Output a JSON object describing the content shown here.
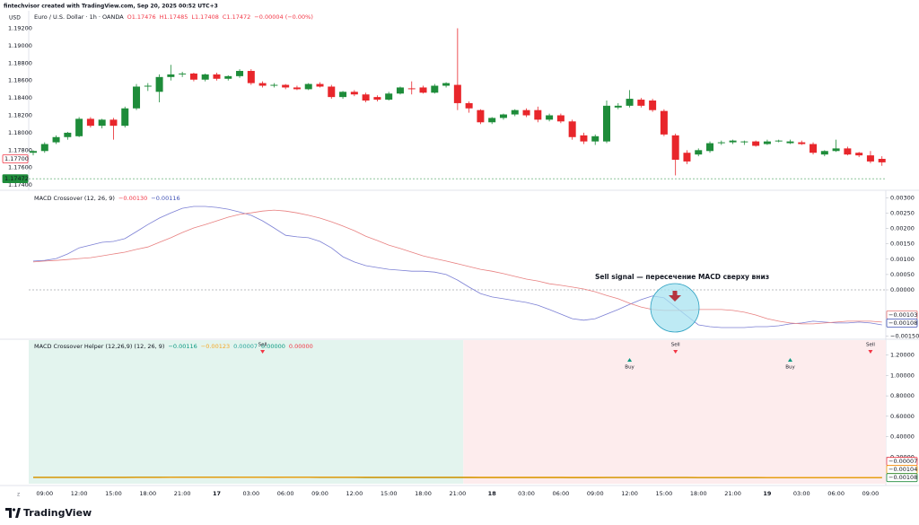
{
  "watermark": "fintechvisor created with TradingView.com, Sep 20, 2025 00:52 UTC+3",
  "currency": "USD",
  "footer_brand": "TradingView",
  "chart_data": [
    {
      "type": "candlestick",
      "legend": {
        "symbol": "Euro / U.S. Dollar · 1h · OANDA",
        "color": "#f23645",
        "ohlc": [
          "O1.17476",
          "H1.17485",
          "L1.17408",
          "C1.17472",
          "−0.00004 (−0.00%)"
        ]
      },
      "categories": [
        null,
        "09:00",
        null,
        null,
        "12:00",
        null,
        null,
        "15:00",
        null,
        null,
        "18:00",
        null,
        null,
        "21:00",
        null,
        null,
        "17",
        null,
        null,
        "03:00",
        null,
        null,
        "06:00",
        null,
        null,
        "09:00",
        null,
        null,
        "12:00",
        null,
        null,
        "15:00",
        null,
        null,
        "18:00",
        null,
        null,
        "21:00",
        null,
        null,
        "18",
        null,
        null,
        "03:00",
        null,
        null,
        "06:00",
        null,
        null,
        "09:00",
        null,
        null,
        "12:00",
        null,
        null,
        "15:00",
        null,
        null,
        "18:00",
        null,
        null,
        "21:00",
        null,
        null,
        "19",
        null,
        null,
        "03:00",
        null,
        null,
        "06:00",
        null,
        null,
        "09:00",
        null
      ],
      "open": [
        1.1777,
        1.1779,
        1.1789,
        1.1795,
        1.1796,
        1.1816,
        1.1808,
        1.1815,
        1.1808,
        1.1828,
        1.1853,
        1.1847,
        1.1864,
        1.1867,
        1.1868,
        1.1861,
        1.1867,
        1.1862,
        1.1865,
        1.1871,
        1.1857,
        1.1854,
        1.1855,
        1.1852,
        1.185,
        1.1856,
        1.1853,
        1.1841,
        1.1847,
        1.1844,
        1.1841,
        1.1838,
        1.1845,
        1.1851,
        1.1852,
        1.1846,
        1.1854,
        1.1855,
        1.1834,
        1.1826,
        1.1812,
        1.1817,
        1.1821,
        1.1826,
        1.1826,
        1.1815,
        1.182,
        1.1813,
        1.1797,
        1.179,
        1.179,
        1.1829,
        1.1831,
        1.1838,
        1.1837,
        1.1825,
        1.1797,
        1.1777,
        1.1775,
        1.1779,
        1.1788,
        1.1789,
        1.1789,
        1.179,
        1.1787,
        1.179,
        1.1788,
        1.1789,
        1.1787,
        1.1775,
        1.1779,
        1.1782,
        1.1777,
        1.1774,
        1.177
      ],
      "high": [
        1.178,
        1.1789,
        1.1797,
        1.1801,
        1.1818,
        1.1818,
        1.1816,
        1.1817,
        1.183,
        1.1856,
        1.1857,
        1.1867,
        1.1878,
        1.187,
        1.1869,
        1.1868,
        1.1869,
        1.1866,
        1.1873,
        1.1873,
        1.1859,
        1.1857,
        1.1856,
        1.1854,
        1.1857,
        1.1858,
        1.1855,
        1.1848,
        1.1849,
        1.1846,
        1.1843,
        1.1847,
        1.1853,
        1.1859,
        1.1854,
        1.1856,
        1.1858,
        1.192,
        1.1836,
        1.1827,
        1.1818,
        1.1822,
        1.1827,
        1.1828,
        1.183,
        1.1822,
        1.1822,
        1.1815,
        1.18,
        1.1798,
        1.1837,
        1.1834,
        1.1849,
        1.184,
        1.1839,
        1.1827,
        1.1799,
        1.178,
        1.1782,
        1.179,
        1.1791,
        1.1792,
        1.1791,
        1.1791,
        1.1792,
        1.1792,
        1.1792,
        1.1791,
        1.1789,
        1.178,
        1.1792,
        1.1784,
        1.1778,
        1.1779,
        1.1773
      ],
      "low": [
        1.1774,
        1.1777,
        1.1787,
        1.1792,
        1.1795,
        1.1806,
        1.1805,
        1.1792,
        1.1806,
        1.1826,
        1.1848,
        1.1835,
        1.186,
        1.1864,
        1.1859,
        1.1859,
        1.186,
        1.186,
        1.1863,
        1.1855,
        1.1852,
        1.1852,
        1.185,
        1.1849,
        1.1849,
        1.1852,
        1.1839,
        1.1839,
        1.1842,
        1.1835,
        1.1836,
        1.1837,
        1.1844,
        1.1844,
        1.1845,
        1.1845,
        1.1852,
        1.1826,
        1.1823,
        1.181,
        1.181,
        1.1815,
        1.1819,
        1.1818,
        1.1812,
        1.1813,
        1.1811,
        1.1792,
        1.1787,
        1.1786,
        1.1788,
        1.1827,
        1.1829,
        1.1829,
        1.1824,
        1.1796,
        1.1751,
        1.1764,
        1.1773,
        1.1777,
        1.1786,
        1.1787,
        1.1786,
        1.1784,
        1.1786,
        1.1789,
        1.1787,
        1.1786,
        1.1775,
        1.1773,
        1.1778,
        1.1774,
        1.1772,
        1.1765,
        1.1762
      ],
      "close": [
        1.1779,
        1.1787,
        1.1795,
        1.18,
        1.1816,
        1.1808,
        1.1815,
        1.1808,
        1.1828,
        1.1853,
        1.1854,
        1.1864,
        1.1867,
        1.1868,
        1.1861,
        1.1867,
        1.1862,
        1.1865,
        1.1871,
        1.1857,
        1.1854,
        1.1855,
        1.1852,
        1.185,
        1.1856,
        1.1853,
        1.1841,
        1.1847,
        1.1844,
        1.1837,
        1.1838,
        1.1845,
        1.1852,
        1.185,
        1.1846,
        1.1854,
        1.1857,
        1.1834,
        1.1828,
        1.1812,
        1.1817,
        1.1821,
        1.1826,
        1.182,
        1.1815,
        1.182,
        1.1813,
        1.1795,
        1.179,
        1.1796,
        1.1831,
        1.1831,
        1.1839,
        1.1831,
        1.1826,
        1.1798,
        1.1769,
        1.1767,
        1.178,
        1.1788,
        1.1789,
        1.1791,
        1.179,
        1.1785,
        1.179,
        1.1791,
        1.179,
        1.1787,
        1.1777,
        1.1779,
        1.1782,
        1.1775,
        1.1774,
        1.1767,
        1.1766
      ],
      "up_color": "#1e8c3a",
      "down_color": "#e8262b",
      "ylim": [
        1.1736,
        1.1937
      ],
      "yticks": [
        {
          "value": 1.174,
          "label": "1.17400"
        },
        {
          "value": 1.176,
          "label": "1.17600"
        },
        {
          "value": 1.178,
          "label": "1.17800"
        },
        {
          "value": 1.18,
          "label": "1.18000"
        },
        {
          "value": 1.182,
          "label": "1.18200"
        },
        {
          "value": 1.184,
          "label": "1.18400"
        },
        {
          "value": 1.186,
          "label": "1.18600"
        },
        {
          "value": 1.188,
          "label": "1.18800"
        },
        {
          "value": 1.19,
          "label": "1.19000"
        },
        {
          "value": 1.192,
          "label": "1.19200"
        }
      ],
      "price_labels": [
        {
          "value": 1.177,
          "label": "1.17700",
          "color": "#f23645",
          "style": "outline"
        },
        {
          "value": 1.17472,
          "label": "1.17472",
          "color": "#1e8c3a",
          "style": "filled"
        }
      ],
      "grid": false
    },
    {
      "type": "line",
      "legend": {
        "title": "MACD Crossover (12, 26, 9)",
        "values": [
          {
            "text": "−0.00130",
            "color": "#f23645"
          },
          {
            "text": "−0.00116",
            "color": "#3f51b5"
          }
        ]
      },
      "annotation": "Sell signal — пересечение MACD сверху вниз",
      "series": [
        {
          "color": "#7b7fd4",
          "values": [
            0.00094,
            0.00096,
            0.00102,
            0.00117,
            0.00137,
            0.00146,
            0.00155,
            0.00158,
            0.00167,
            0.0019,
            0.00213,
            0.00234,
            0.00251,
            0.00266,
            0.00272,
            0.00272,
            0.00269,
            0.00263,
            0.00254,
            0.00243,
            0.00225,
            0.00202,
            0.00178,
            0.00173,
            0.0017,
            0.00158,
            0.00137,
            0.00108,
            0.00091,
            0.00079,
            0.00073,
            0.00067,
            0.00064,
            0.00061,
            0.00061,
            0.00058,
            0.0005,
            0.00032,
            9e-05,
            -0.00012,
            -0.00023,
            -0.00029,
            -0.00035,
            -0.00041,
            -0.0005,
            -0.00064,
            -0.00079,
            -0.00094,
            -0.00099,
            -0.00094,
            -0.00079,
            -0.00064,
            -0.00047,
            -0.00032,
            -0.0002,
            -0.00026,
            -0.00056,
            -0.00085,
            -0.00114,
            -0.0012,
            -0.00123,
            -0.00123,
            -0.00123,
            -0.0012,
            -0.0012,
            -0.00117,
            -0.00111,
            -0.00108,
            -0.00102,
            -0.00105,
            -0.00108,
            -0.00108,
            -0.00105,
            -0.00108,
            -0.00114
          ]
        },
        {
          "color": "#e88080",
          "values": [
            0.00091,
            0.00094,
            0.00096,
            0.00099,
            0.00102,
            0.00105,
            0.00111,
            0.00117,
            0.00123,
            0.00132,
            0.0014,
            0.00155,
            0.0017,
            0.00187,
            0.00202,
            0.00213,
            0.00225,
            0.00237,
            0.00246,
            0.00251,
            0.00257,
            0.0026,
            0.00257,
            0.00251,
            0.00243,
            0.00234,
            0.00222,
            0.00208,
            0.00193,
            0.00175,
            0.00161,
            0.00146,
            0.00135,
            0.00123,
            0.00111,
            0.00102,
            0.00094,
            0.00085,
            0.00076,
            0.00067,
            0.00061,
            0.00053,
            0.00044,
            0.00035,
            0.00029,
            0.0002,
            0.00015,
            9e-05,
            3e-05,
            -6e-05,
            -0.00018,
            -0.00029,
            -0.00044,
            -0.00056,
            -0.00064,
            -0.00067,
            -0.00067,
            -0.00067,
            -0.00064,
            -0.00064,
            -0.00064,
            -0.00067,
            -0.00073,
            -0.00082,
            -0.00094,
            -0.00102,
            -0.00108,
            -0.00111,
            -0.00111,
            -0.00108,
            -0.00105,
            -0.00102,
            -0.00102,
            -0.00102,
            -0.00105
          ]
        }
      ],
      "ylim": [
        -0.00158,
        0.00316
      ],
      "yticks": [
        {
          "value": 0.003,
          "label": "0.00300"
        },
        {
          "value": 0.0025,
          "label": "0.00250"
        },
        {
          "value": 0.002,
          "label": "0.00200"
        },
        {
          "value": 0.0015,
          "label": "0.00150"
        },
        {
          "value": 0.001,
          "label": "0.00100"
        },
        {
          "value": 0.0005,
          "label": "0.00050"
        },
        {
          "value": 0,
          "label": "0.00000"
        },
        {
          "value": -0.0015,
          "label": "−0.00150"
        }
      ],
      "zero_line": true,
      "value_boxes": [
        {
          "value": -0.00103,
          "label": "−0.00103",
          "color": "#e57373"
        },
        {
          "value": -0.00108,
          "label": "−0.00108",
          "color": "#3f51b5"
        }
      ]
    },
    {
      "type": "signals",
      "legend": {
        "title": "MACD Crossover Helper (12,26,9) (12, 26, 9)",
        "values": [
          {
            "text": "−0.00116",
            "color": "#089981"
          },
          {
            "text": "−0.00123",
            "color": "#f5a623"
          },
          {
            "text": "0.00007",
            "color": "#26a69a"
          },
          {
            "text": "0.00000",
            "color": "#089981"
          },
          {
            "text": "0.00000",
            "color": "#f23645"
          }
        ]
      },
      "signals": [
        null,
        null,
        null,
        null,
        null,
        null,
        null,
        null,
        null,
        null,
        null,
        null,
        null,
        null,
        null,
        null,
        null,
        null,
        null,
        null,
        "Sell",
        null,
        null,
        null,
        null,
        null,
        null,
        null,
        null,
        null,
        null,
        null,
        null,
        null,
        null,
        null,
        null,
        null,
        null,
        null,
        null,
        null,
        null,
        null,
        null,
        null,
        null,
        null,
        null,
        null,
        null,
        null,
        "Buy",
        null,
        null,
        null,
        "Sell",
        null,
        null,
        null,
        null,
        null,
        null,
        null,
        null,
        null,
        "Buy",
        null,
        null,
        null,
        null,
        null,
        null,
        "Sell",
        null
      ],
      "buy_color": "#089981",
      "sell_color": "#f23645",
      "label_color": "#2962ff",
      "zones": [
        {
          "start_index": 0,
          "end_index": 38,
          "color": "#e3f4ee"
        },
        {
          "start_index": 38,
          "end_index": 74,
          "color": "#fdeced"
        }
      ],
      "line_colors": [
        "#1e8c3a",
        "#f59e0b"
      ],
      "ylim": [
        -0.07,
        1.32
      ],
      "yticks": [
        {
          "value": 1.2,
          "label": "1.20000"
        },
        {
          "value": 1,
          "label": "1.00000"
        },
        {
          "value": 0.8,
          "label": "0.80000"
        },
        {
          "value": 0.6,
          "label": "0.60000"
        },
        {
          "value": 0.4,
          "label": "0.40000"
        },
        {
          "value": 0.2,
          "label": "0.20000"
        }
      ],
      "value_boxes": [
        {
          "value": -7e-05,
          "label": "−0.00007",
          "color": "#f23645"
        },
        {
          "value": -0.00104,
          "label": "−0.00104",
          "color": "#f59e0b"
        },
        {
          "value": -0.00108,
          "label": "−0.00108",
          "color": "#1e8c3a"
        }
      ]
    }
  ]
}
